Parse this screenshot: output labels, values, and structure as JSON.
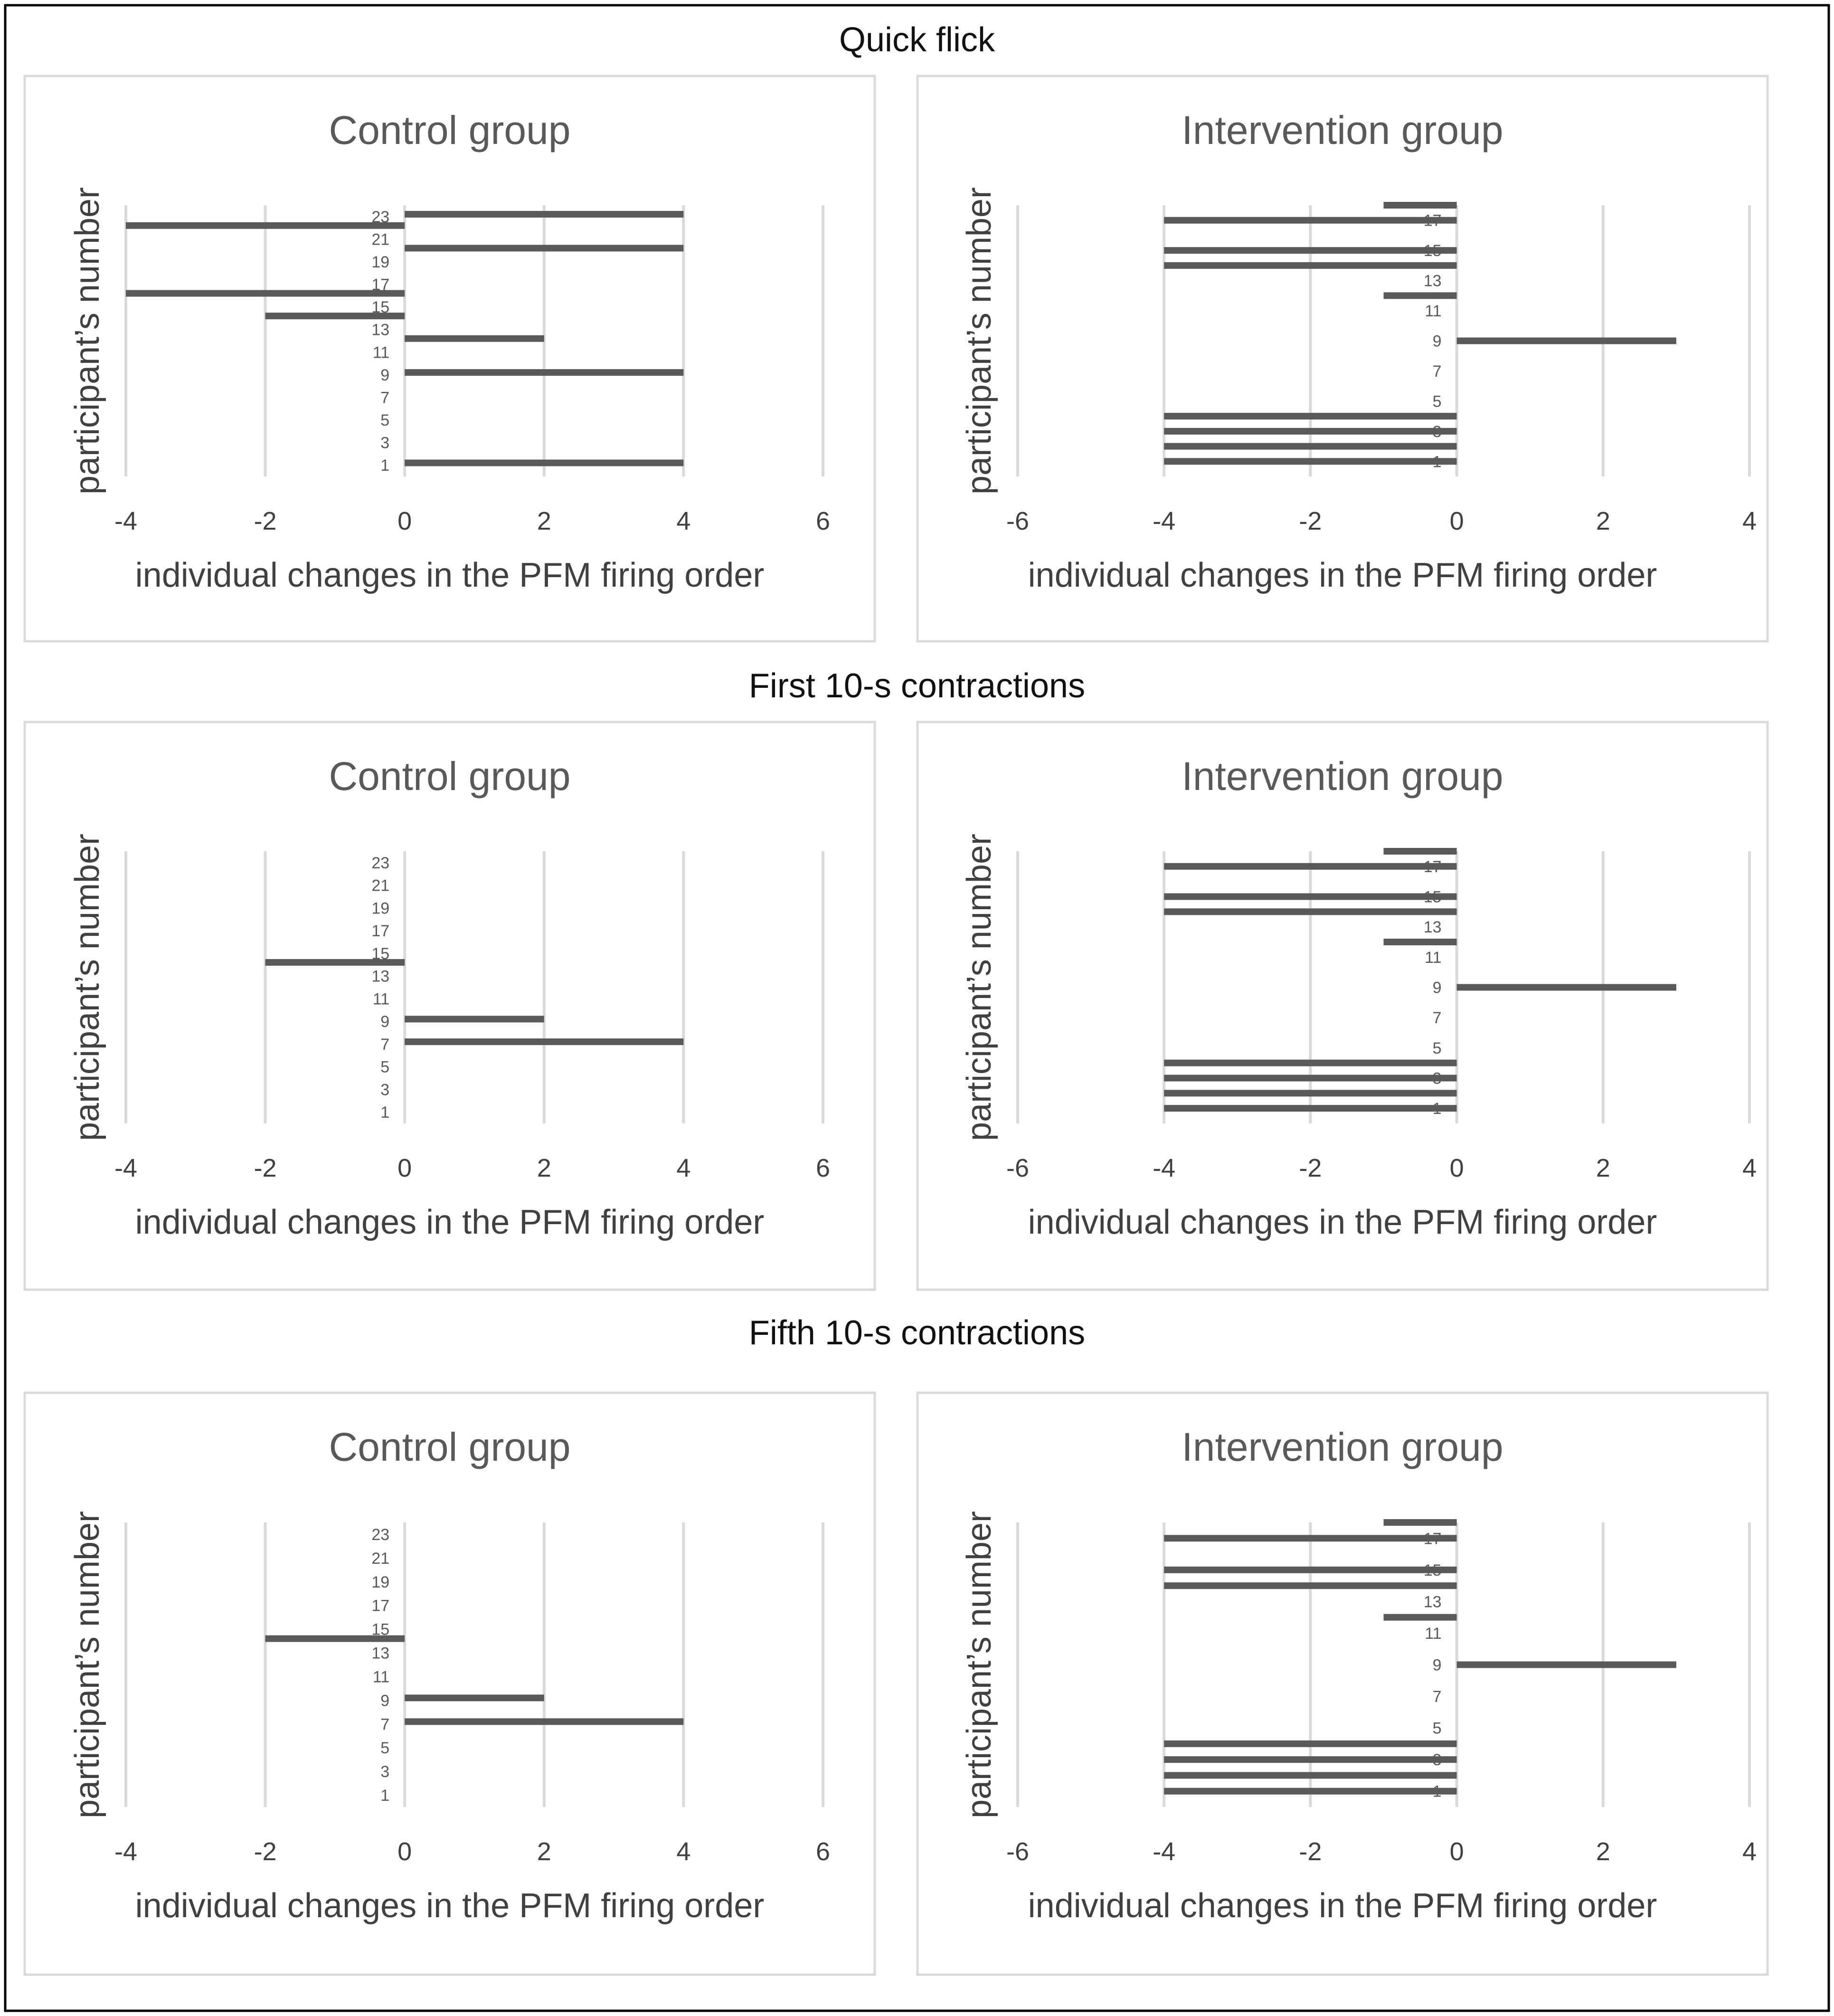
{
  "figure": {
    "sections": [
      {
        "title": "Quick flick"
      },
      {
        "title": "First 10-s contractions"
      },
      {
        "title": "Fifth 10-s contractions"
      }
    ]
  },
  "colors": {
    "bar": "#595959",
    "gridline": "#d9d9d9",
    "panel_border": "#d9d9d9",
    "outer_border": "#000000"
  },
  "chart_data": [
    {
      "type": "bar",
      "orientation": "horizontal",
      "section": "Quick flick",
      "title": "Control group",
      "xlabel": "individual changes in the PFM firing order",
      "ylabel": "participant’s number",
      "xlim": [
        -4,
        6
      ],
      "xticks": [
        -4,
        -2,
        0,
        2,
        4,
        6
      ],
      "ylim": [
        0,
        24
      ],
      "row_labels": [
        {
          "label": "23",
          "pos": 23
        },
        {
          "label": "21",
          "pos": 21
        },
        {
          "label": "19",
          "pos": 19
        },
        {
          "label": "17",
          "pos": 17
        },
        {
          "label": "15",
          "pos": 15
        },
        {
          "label": "13",
          "pos": 13
        },
        {
          "label": "11",
          "pos": 11
        },
        {
          "label": "9",
          "pos": 9
        },
        {
          "label": "7",
          "pos": 7
        },
        {
          "label": "5",
          "pos": 5
        },
        {
          "label": "3",
          "pos": 3
        },
        {
          "label": "1",
          "pos": 1
        }
      ],
      "bars": [
        {
          "participant": 23,
          "pos": 23.2,
          "value": 4
        },
        {
          "participant": 22,
          "pos": 22.2,
          "value": -4
        },
        {
          "participant": 20,
          "pos": 20.2,
          "value": 4
        },
        {
          "participant": 16,
          "pos": 16.2,
          "value": -4
        },
        {
          "participant": 14,
          "pos": 14.2,
          "value": -2
        },
        {
          "participant": 12,
          "pos": 12.2,
          "value": 2
        },
        {
          "participant": 9,
          "pos": 9.2,
          "value": 4
        },
        {
          "participant": 1,
          "pos": 1.2,
          "value": 4
        }
      ]
    },
    {
      "type": "bar",
      "orientation": "horizontal",
      "section": "Quick flick",
      "title": "Intervention group",
      "xlabel": "individual changes in the PFM firing order",
      "ylabel": "participant’s number",
      "xlim": [
        -6,
        4
      ],
      "xticks": [
        -6,
        -4,
        -2,
        0,
        2,
        4
      ],
      "ylim": [
        0,
        18
      ],
      "row_labels": [
        {
          "label": "17",
          "pos": 17
        },
        {
          "label": "15",
          "pos": 15
        },
        {
          "label": "13",
          "pos": 13
        },
        {
          "label": "11",
          "pos": 11
        },
        {
          "label": "9",
          "pos": 9
        },
        {
          "label": "7",
          "pos": 7
        },
        {
          "label": "5",
          "pos": 5
        },
        {
          "label": "3",
          "pos": 3
        },
        {
          "label": "1",
          "pos": 1
        }
      ],
      "bars": [
        {
          "participant": 18,
          "pos": 18,
          "value": -1
        },
        {
          "participant": 17,
          "pos": 17,
          "value": -4
        },
        {
          "participant": 15,
          "pos": 15,
          "value": -4
        },
        {
          "participant": 14,
          "pos": 14,
          "value": -4
        },
        {
          "participant": 12,
          "pos": 12,
          "value": -1
        },
        {
          "participant": 9,
          "pos": 9,
          "value": 3
        },
        {
          "participant": 4,
          "pos": 4,
          "value": -4
        },
        {
          "participant": 3,
          "pos": 3,
          "value": -4
        },
        {
          "participant": 2,
          "pos": 2,
          "value": -4
        },
        {
          "participant": 1,
          "pos": 1,
          "value": -4
        }
      ]
    },
    {
      "type": "bar",
      "orientation": "horizontal",
      "section": "First 10-s contractions",
      "title": "Control group",
      "xlabel": "individual changes in the PFM firing order",
      "ylabel": "participant’s number",
      "xlim": [
        -4,
        6
      ],
      "xticks": [
        -4,
        -2,
        0,
        2,
        4,
        6
      ],
      "ylim": [
        0,
        24
      ],
      "row_labels": [
        {
          "label": "23",
          "pos": 23
        },
        {
          "label": "21",
          "pos": 21
        },
        {
          "label": "19",
          "pos": 19
        },
        {
          "label": "17",
          "pos": 17
        },
        {
          "label": "15",
          "pos": 15
        },
        {
          "label": "13",
          "pos": 13
        },
        {
          "label": "11",
          "pos": 11
        },
        {
          "label": "9",
          "pos": 9
        },
        {
          "label": "7",
          "pos": 7
        },
        {
          "label": "5",
          "pos": 5
        },
        {
          "label": "3",
          "pos": 3
        },
        {
          "label": "1",
          "pos": 1
        }
      ],
      "bars": [
        {
          "participant": 14,
          "pos": 14.2,
          "value": -2
        },
        {
          "participant": 9,
          "pos": 9.2,
          "value": 2
        },
        {
          "participant": 7,
          "pos": 7.2,
          "value": 4
        }
      ]
    },
    {
      "type": "bar",
      "orientation": "horizontal",
      "section": "First 10-s contractions",
      "title": "Intervention group",
      "xlabel": "individual changes in the PFM firing order",
      "ylabel": "participant’s number",
      "xlim": [
        -6,
        4
      ],
      "xticks": [
        -6,
        -4,
        -2,
        0,
        2,
        4
      ],
      "ylim": [
        0,
        18
      ],
      "row_labels": [
        {
          "label": "17",
          "pos": 17
        },
        {
          "label": "15",
          "pos": 15
        },
        {
          "label": "13",
          "pos": 13
        },
        {
          "label": "11",
          "pos": 11
        },
        {
          "label": "9",
          "pos": 9
        },
        {
          "label": "7",
          "pos": 7
        },
        {
          "label": "5",
          "pos": 5
        },
        {
          "label": "3",
          "pos": 3
        },
        {
          "label": "1",
          "pos": 1
        }
      ],
      "bars": [
        {
          "participant": 18,
          "pos": 18,
          "value": -1
        },
        {
          "participant": 17,
          "pos": 17,
          "value": -4
        },
        {
          "participant": 15,
          "pos": 15,
          "value": -4
        },
        {
          "participant": 14,
          "pos": 14,
          "value": -4
        },
        {
          "participant": 12,
          "pos": 12,
          "value": -1
        },
        {
          "participant": 9,
          "pos": 9,
          "value": 3
        },
        {
          "participant": 4,
          "pos": 4,
          "value": -4
        },
        {
          "participant": 3,
          "pos": 3,
          "value": -4
        },
        {
          "participant": 2,
          "pos": 2,
          "value": -4
        },
        {
          "participant": 1,
          "pos": 1,
          "value": -4
        }
      ]
    },
    {
      "type": "bar",
      "orientation": "horizontal",
      "section": "Fifth 10-s contractions",
      "title": "Control group",
      "xlabel": "individual changes in the PFM firing order",
      "ylabel": "participant’s number",
      "xlim": [
        -4,
        6
      ],
      "xticks": [
        -4,
        -2,
        0,
        2,
        4,
        6
      ],
      "ylim": [
        0,
        24
      ],
      "row_labels": [
        {
          "label": "23",
          "pos": 23
        },
        {
          "label": "21",
          "pos": 21
        },
        {
          "label": "19",
          "pos": 19
        },
        {
          "label": "17",
          "pos": 17
        },
        {
          "label": "15",
          "pos": 15
        },
        {
          "label": "13",
          "pos": 13
        },
        {
          "label": "11",
          "pos": 11
        },
        {
          "label": "9",
          "pos": 9
        },
        {
          "label": "7",
          "pos": 7
        },
        {
          "label": "5",
          "pos": 5
        },
        {
          "label": "3",
          "pos": 3
        },
        {
          "label": "1",
          "pos": 1
        }
      ],
      "bars": [
        {
          "participant": 14,
          "pos": 14.2,
          "value": -2
        },
        {
          "participant": 9,
          "pos": 9.2,
          "value": 2
        },
        {
          "participant": 7,
          "pos": 7.2,
          "value": 4
        }
      ]
    },
    {
      "type": "bar",
      "orientation": "horizontal",
      "section": "Fifth 10-s contractions",
      "title": "Intervention group",
      "xlabel": "individual changes in the PFM firing order",
      "ylabel": "participant’s number",
      "xlim": [
        -6,
        4
      ],
      "xticks": [
        -6,
        -4,
        -2,
        0,
        2,
        4
      ],
      "ylim": [
        0,
        18
      ],
      "row_labels": [
        {
          "label": "17",
          "pos": 17
        },
        {
          "label": "15",
          "pos": 15
        },
        {
          "label": "13",
          "pos": 13
        },
        {
          "label": "11",
          "pos": 11
        },
        {
          "label": "9",
          "pos": 9
        },
        {
          "label": "7",
          "pos": 7
        },
        {
          "label": "5",
          "pos": 5
        },
        {
          "label": "3",
          "pos": 3
        },
        {
          "label": "1",
          "pos": 1
        }
      ],
      "bars": [
        {
          "participant": 18,
          "pos": 18,
          "value": -1
        },
        {
          "participant": 17,
          "pos": 17,
          "value": -4
        },
        {
          "participant": 15,
          "pos": 15,
          "value": -4
        },
        {
          "participant": 14,
          "pos": 14,
          "value": -4
        },
        {
          "participant": 12,
          "pos": 12,
          "value": -1
        },
        {
          "participant": 9,
          "pos": 9,
          "value": 3
        },
        {
          "participant": 4,
          "pos": 4,
          "value": -4
        },
        {
          "participant": 3,
          "pos": 3,
          "value": -4
        },
        {
          "participant": 2,
          "pos": 2,
          "value": -4
        },
        {
          "participant": 1,
          "pos": 1,
          "value": -4
        }
      ]
    }
  ]
}
